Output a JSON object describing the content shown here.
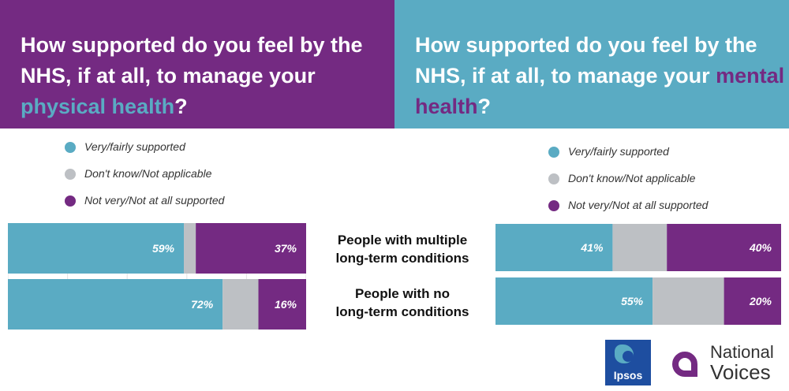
{
  "colors": {
    "supported": "#5aabc3",
    "dont_know": "#bdc0c4",
    "not_supported": "#742a82"
  },
  "left_panel": {
    "title_pre": "How supported do you feel by the NHS, if at all, to manage your ",
    "title_highlight": "physical health",
    "title_post": "?"
  },
  "right_panel": {
    "title_pre": "How supported do you feel by the NHS, if at all, to manage your ",
    "title_highlight": "mental health",
    "title_post": "?"
  },
  "legend": [
    {
      "label": "Very/fairly supported",
      "color": "#5aabc3"
    },
    {
      "label": "Don't know/Not applicable",
      "color": "#bdc0c4"
    },
    {
      "label": "Not very/Not at all supported",
      "color": "#742a82"
    }
  ],
  "rows": [
    {
      "label_line1": "People with multiple",
      "label_line2": "long-term conditions"
    },
    {
      "label_line1": "People with no",
      "label_line2": "long-term conditions"
    }
  ],
  "logos": {
    "ipsos": "Ipsos",
    "national_voices_line1": "National",
    "national_voices_line2": "Voices"
  },
  "chart_data": [
    {
      "type": "bar",
      "orientation": "horizontal",
      "stacked": true,
      "title": "How supported do you feel by the NHS, if at all, to manage your physical health?",
      "categories": [
        "People with multiple long-term conditions",
        "People with no long-term conditions"
      ],
      "series": [
        {
          "name": "Very/fairly supported",
          "values": [
            59,
            72
          ],
          "labels": [
            "59%",
            "72%"
          ]
        },
        {
          "name": "Don't know/Not applicable",
          "values": [
            4,
            12
          ],
          "labels": [
            "",
            ""
          ]
        },
        {
          "name": "Not very/Not at all supported",
          "values": [
            37,
            16
          ],
          "labels": [
            "37%",
            "16%"
          ]
        }
      ],
      "xlim": [
        0,
        100
      ],
      "grid": true,
      "legend": "top-left"
    },
    {
      "type": "bar",
      "orientation": "horizontal",
      "stacked": true,
      "title": "How supported do you feel by the NHS, if at all, to manage your mental health?",
      "categories": [
        "People with multiple long-term conditions",
        "People with no long-term conditions"
      ],
      "series": [
        {
          "name": "Very/fairly supported",
          "values": [
            41,
            55
          ],
          "labels": [
            "41%",
            "55%"
          ]
        },
        {
          "name": "Don't know/Not applicable",
          "values": [
            19,
            25
          ],
          "labels": [
            "",
            ""
          ]
        },
        {
          "name": "Not very/Not at all supported",
          "values": [
            40,
            20
          ],
          "labels": [
            "40%",
            "20%"
          ]
        }
      ],
      "xlim": [
        0,
        100
      ],
      "grid": false,
      "legend": "top-right"
    }
  ]
}
